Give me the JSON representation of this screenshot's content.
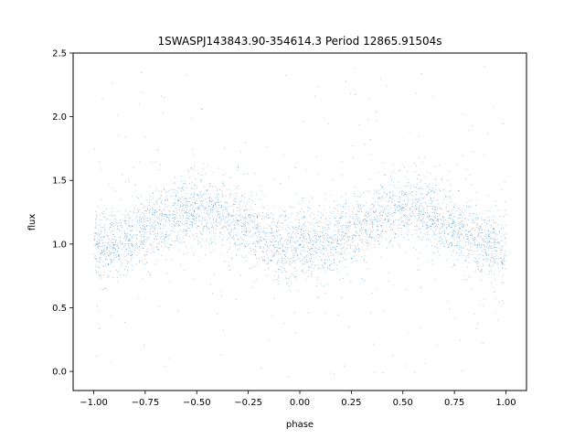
{
  "chart_data": {
    "type": "scatter",
    "title": "1SWASPJ143843.90-354614.3 Period 12865.91504s",
    "xlabel": "phase",
    "ylabel": "flux",
    "xlim": [
      -1.1,
      1.1
    ],
    "ylim": [
      -0.15,
      2.5
    ],
    "xticks": [
      -1.0,
      -0.75,
      -0.5,
      -0.25,
      0.0,
      0.25,
      0.5,
      0.75,
      1.0
    ],
    "xtick_labels": [
      "−1.00",
      "−0.75",
      "−0.50",
      "−0.25",
      "0.00",
      "0.25",
      "0.50",
      "0.75",
      "1.00"
    ],
    "yticks": [
      0.0,
      0.5,
      1.0,
      1.5,
      2.0,
      2.5
    ],
    "ytick_labels": [
      "0.0",
      "0.5",
      "1.0",
      "1.5",
      "2.0",
      "2.5"
    ],
    "grid": false,
    "point_color": "#1f77b4",
    "series": [
      {
        "values_description_model": "flux ≈ 1.12 + 0.15·sin(2π(phase−0.25)) with ~0.13 scatter, phase in [-1, 1]",
        "trend_points": [
          {
            "x": -1.0,
            "y": 1.0
          },
          {
            "x": -0.75,
            "y": 1.12
          },
          {
            "x": -0.5,
            "y": 1.27
          },
          {
            "x": -0.25,
            "y": 1.2
          },
          {
            "x": 0.0,
            "y": 1.0
          },
          {
            "x": 0.25,
            "y": 1.12
          },
          {
            "x": 0.5,
            "y": 1.27
          },
          {
            "x": 0.75,
            "y": 1.2
          },
          {
            "x": 1.0,
            "y": 1.0
          }
        ]
      }
    ]
  }
}
